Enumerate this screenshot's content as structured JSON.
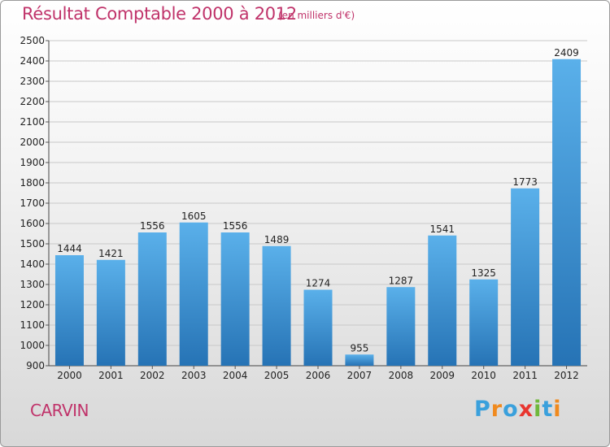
{
  "header": {
    "title": "Résultat Comptable 2000 à 2012",
    "subtitle": "(en milliers d'€)"
  },
  "footer": {
    "commune": "CARVIN",
    "logo_text": "Proxiti"
  },
  "colors": {
    "bar_top": "#5ab0ea",
    "bar_bottom": "#2673b5",
    "title": "#c0336a",
    "grid": "#c8c8c8"
  },
  "chart_data": {
    "type": "bar",
    "title": "Résultat Comptable 2000 à 2012",
    "subtitle": "(en milliers d'€)",
    "categories": [
      "2000",
      "2001",
      "2002",
      "2003",
      "2004",
      "2005",
      "2006",
      "2007",
      "2008",
      "2009",
      "2010",
      "2011",
      "2012"
    ],
    "values": [
      1444,
      1421,
      1556,
      1605,
      1556,
      1489,
      1274,
      955,
      1287,
      1541,
      1325,
      1773,
      2409
    ],
    "ylim": [
      900,
      2500
    ],
    "yticks": [
      900,
      1000,
      1100,
      1200,
      1300,
      1400,
      1500,
      1600,
      1700,
      1800,
      1900,
      2000,
      2100,
      2200,
      2300,
      2400,
      2500
    ],
    "grid": true,
    "legend": "none",
    "xlabel": "",
    "ylabel": ""
  }
}
